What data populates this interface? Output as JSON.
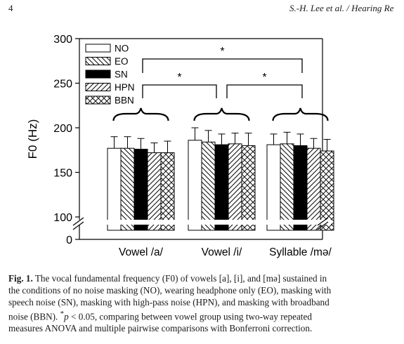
{
  "header": {
    "page_number": "4",
    "running_head": "S.-H. Lee et al. / Hearing Re"
  },
  "chart_data": {
    "type": "bar",
    "ylabel": "F0 (Hz)",
    "y_ticks_upper": [
      "300",
      "250",
      "200",
      "150",
      "100"
    ],
    "y_tick_lower": "0",
    "ylim": [
      100,
      300
    ],
    "categories": [
      "Vowel /a/",
      "Vowel /i/",
      "Syllable /mə/"
    ],
    "series": [
      {
        "name": "NO",
        "values": [
          177,
          186,
          181
        ],
        "errors": [
          13,
          14,
          12
        ]
      },
      {
        "name": "EO",
        "values": [
          177,
          184,
          182
        ],
        "errors": [
          13,
          13,
          13
        ]
      },
      {
        "name": "SN",
        "values": [
          176,
          181,
          180
        ],
        "errors": [
          12,
          12,
          13
        ]
      },
      {
        "name": "HPN",
        "values": [
          172,
          182,
          177
        ],
        "errors": [
          11,
          12,
          11
        ]
      },
      {
        "name": "BBN",
        "values": [
          172,
          180,
          174
        ],
        "errors": [
          13,
          14,
          13
        ]
      }
    ],
    "significance": [
      {
        "between": [
          "Vowel /a/",
          "Syllable /mə/"
        ],
        "label": "*"
      },
      {
        "between": [
          "Vowel /a/",
          "Vowel /i/"
        ],
        "label": "*"
      },
      {
        "between": [
          "Vowel /i/",
          "Syllable /mə/"
        ],
        "label": "*"
      }
    ],
    "legend_position": "top-left",
    "axis_break": true
  },
  "caption": {
    "label": "Fig. 1.",
    "line1": " The vocal fundamental frequency (F0) of vowels [a], [i], and [mə] sustained in",
    "line2": "the conditions of no noise masking (NO), wearing headphone only (EO), masking with",
    "line3": "speech noise (SN), masking with high-pass noise (HPN), and masking with broadband",
    "line4a": "noise (BBN). ",
    "sup": "*",
    "p_symbol": "p",
    "line4b": " < 0.05, comparing between vowel group using two-way repeated",
    "line5": "measures ANOVA and multiple pairwise comparisons with Bonferroni correction."
  }
}
